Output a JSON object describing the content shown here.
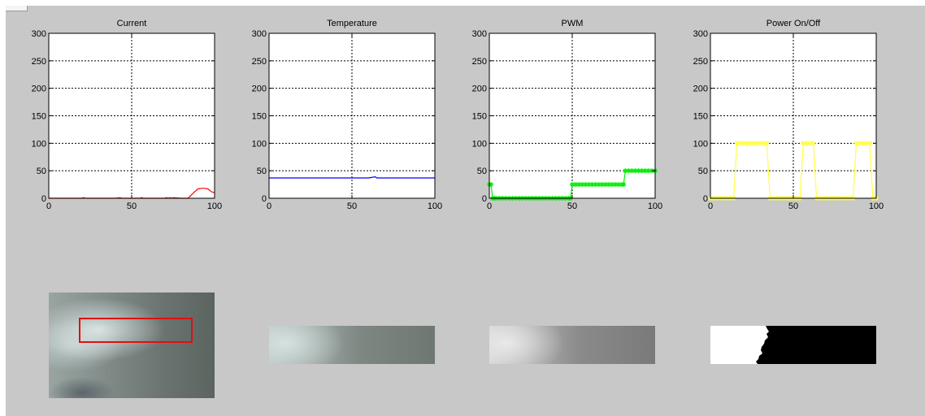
{
  "chart_data": [
    {
      "type": "line",
      "title": "Current",
      "xlim": [
        0,
        100
      ],
      "ylim": [
        0,
        300
      ],
      "xticks": [
        0,
        50,
        100
      ],
      "yticks": [
        0,
        50,
        100,
        150,
        200,
        250,
        300
      ],
      "grid": true,
      "series": [
        {
          "color": "#ff0000",
          "marker": "none",
          "x": [
            0,
            10,
            20,
            21,
            22,
            30,
            40,
            43,
            44,
            50,
            55,
            56,
            57,
            70,
            71,
            72,
            73,
            74,
            75,
            80,
            84,
            86,
            88,
            90,
            92,
            94,
            96,
            98,
            100
          ],
          "y": [
            0,
            0,
            0,
            1,
            0,
            0,
            0,
            1,
            0,
            0,
            0,
            1,
            0,
            0,
            1,
            0,
            1,
            0,
            1,
            0,
            0,
            6,
            12,
            17,
            18,
            18,
            17,
            12,
            10
          ]
        }
      ]
    },
    {
      "type": "line",
      "title": "Temperature",
      "xlim": [
        0,
        100
      ],
      "ylim": [
        0,
        300
      ],
      "xticks": [
        0,
        50,
        100
      ],
      "yticks": [
        0,
        50,
        100,
        150,
        200,
        250,
        300
      ],
      "grid": true,
      "series": [
        {
          "color": "#0000ff",
          "marker": "none",
          "x": [
            0,
            5,
            10,
            15,
            20,
            25,
            30,
            35,
            40,
            45,
            50,
            55,
            60,
            64,
            65,
            70,
            75,
            80,
            85,
            90,
            95,
            100
          ],
          "y": [
            37,
            37,
            37,
            37,
            37,
            37,
            37,
            37,
            37,
            37,
            37,
            37,
            37,
            39,
            37,
            37,
            37,
            37,
            37,
            37,
            37,
            37
          ]
        }
      ]
    },
    {
      "type": "line",
      "title": "PWM",
      "xlim": [
        0,
        100
      ],
      "ylim": [
        0,
        300
      ],
      "xticks": [
        0,
        50,
        100
      ],
      "yticks": [
        0,
        50,
        100,
        150,
        200,
        250,
        300
      ],
      "grid": true,
      "series": [
        {
          "color": "#00ee00",
          "marker": "star",
          "x": [
            0,
            1,
            2,
            3,
            4,
            6,
            8,
            10,
            12,
            14,
            16,
            18,
            20,
            22,
            24,
            26,
            28,
            30,
            32,
            34,
            36,
            38,
            40,
            42,
            44,
            46,
            48,
            49,
            50,
            52,
            54,
            56,
            58,
            60,
            62,
            64,
            66,
            68,
            70,
            72,
            74,
            76,
            78,
            80,
            81,
            82,
            84,
            86,
            88,
            90,
            92,
            94,
            96,
            98,
            100
          ],
          "y": [
            25,
            25,
            0,
            0,
            0,
            0,
            0,
            0,
            0,
            0,
            0,
            0,
            0,
            0,
            0,
            0,
            0,
            0,
            0,
            0,
            0,
            0,
            0,
            0,
            0,
            0,
            0,
            0,
            25,
            25,
            25,
            25,
            25,
            25,
            25,
            25,
            25,
            25,
            25,
            25,
            25,
            25,
            25,
            25,
            25,
            50,
            50,
            50,
            50,
            50,
            50,
            50,
            50,
            50,
            50
          ]
        }
      ]
    },
    {
      "type": "line",
      "title": "Power On/Off",
      "xlim": [
        0,
        100
      ],
      "ylim": [
        0,
        300
      ],
      "xticks": [
        0,
        50,
        100
      ],
      "yticks": [
        0,
        50,
        100,
        150,
        200,
        250,
        300
      ],
      "grid": true,
      "series": [
        {
          "color": "#ffff44",
          "marker": "star",
          "x": [
            0,
            2,
            4,
            6,
            8,
            10,
            12,
            14,
            16,
            18,
            20,
            22,
            24,
            26,
            28,
            30,
            32,
            34,
            36,
            38,
            40,
            42,
            44,
            46,
            48,
            50,
            52,
            54,
            56,
            58,
            60,
            62,
            64,
            66,
            68,
            70,
            72,
            74,
            76,
            78,
            80,
            82,
            84,
            86,
            88,
            90,
            92,
            94,
            96,
            98,
            100
          ],
          "y": [
            0,
            0,
            0,
            0,
            0,
            0,
            0,
            0,
            100,
            100,
            100,
            100,
            100,
            100,
            100,
            100,
            100,
            100,
            0,
            0,
            0,
            0,
            0,
            0,
            0,
            0,
            0,
            0,
            100,
            100,
            100,
            100,
            0,
            0,
            0,
            0,
            0,
            0,
            0,
            0,
            0,
            0,
            0,
            0,
            100,
            100,
            100,
            100,
            100,
            0,
            0
          ]
        }
      ]
    }
  ],
  "images": [
    {
      "name": "original-frame",
      "roi_marker_color": "#e01010"
    },
    {
      "name": "cropped-region"
    },
    {
      "name": "grayscale-region"
    },
    {
      "name": "binary-region"
    }
  ]
}
